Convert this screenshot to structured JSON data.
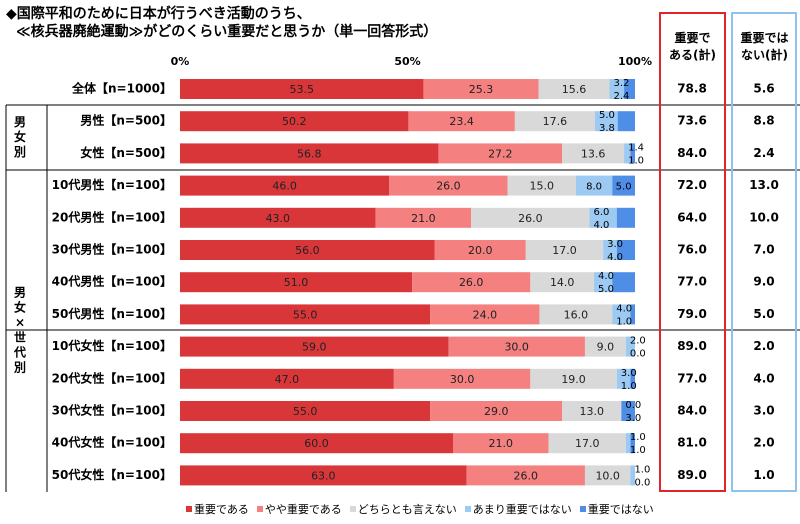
{
  "title": {
    "line1": "◆国際平和のために日本が行うべき活動のうち、",
    "line2": "≪核兵器廃絶運動≫がどのくらい重要だと思うか（単一回答形式）"
  },
  "summary_headers": {
    "important": "重要で\nある(計)",
    "not_important": "重要では\nない(計)"
  },
  "groups": [
    {
      "label": "男女別",
      "rows": [
        1,
        2
      ]
    },
    {
      "label": "男女×世代別",
      "rows": [
        3,
        12
      ]
    }
  ],
  "colors": {
    "重要である": "#d9363a",
    "やや重要である": "#f58080",
    "どちらとも言えない": "#d9d9d9",
    "あまり重要ではない": "#9ccaf2",
    "重要ではない": "#4f8ee6",
    "red_frame": "#e0242a",
    "blue_frame": "#8fc3ea"
  },
  "chart_data": {
    "type": "bar",
    "orientation": "horizontal-stacked-100",
    "x_ticks": [
      "0%",
      "50%",
      "100%"
    ],
    "xlim": [
      0,
      100
    ],
    "categories": [
      "全体【n=1000】",
      "男性【n=500】",
      "女性【n=500】",
      "10代男性【n=100】",
      "20代男性【n=100】",
      "30代男性【n=100】",
      "40代男性【n=100】",
      "50代男性【n=100】",
      "10代女性【n=100】",
      "20代女性【n=100】",
      "30代女性【n=100】",
      "40代女性【n=100】",
      "50代女性【n=100】"
    ],
    "series": [
      {
        "name": "重要である",
        "values": [
          53.5,
          50.2,
          56.8,
          46.0,
          43.0,
          56.0,
          51.0,
          55.0,
          59.0,
          47.0,
          55.0,
          60.0,
          63.0
        ],
        "labels": [
          "53.5",
          "50.2",
          "56.8",
          "46.0",
          "43.0",
          "56.0",
          "51.0",
          "55.0",
          "59.0",
          "47.0",
          "55.0",
          "60.0",
          "63.0"
        ]
      },
      {
        "name": "やや重要である",
        "values": [
          25.3,
          23.4,
          27.2,
          26.0,
          21.0,
          20.0,
          26.0,
          24.0,
          30.0,
          30.0,
          29.0,
          21.0,
          26.0
        ],
        "labels": [
          "25.3",
          "23.4",
          "27.2",
          "26.0",
          "21.0",
          "20.0",
          "26.0",
          "24.0",
          "30.0",
          "30.0",
          "29.0",
          "21.0",
          "26.0"
        ]
      },
      {
        "name": "どちらとも言えない",
        "values": [
          15.6,
          17.6,
          13.6,
          15.0,
          26.0,
          17.0,
          14.0,
          16.0,
          9.0,
          19.0,
          13.0,
          17.0,
          10.0
        ],
        "labels": [
          "15.6",
          "17.6",
          "13.6",
          "15.0",
          "26.0",
          "17.0",
          "14.0",
          "16.0",
          "9.0",
          "19.0",
          "13.0",
          "17.0",
          "10.0"
        ]
      },
      {
        "name": "あまり重要ではない",
        "values": [
          3.2,
          5.0,
          1.4,
          8.0,
          6.0,
          3.0,
          4.0,
          4.0,
          2.0,
          3.0,
          0.0,
          1.0,
          1.0
        ],
        "labels": [
          "3.2",
          "5.0",
          "1.4",
          "8.0",
          "6.0",
          "3.0",
          "4.0",
          "4.0",
          "2.0",
          "3.0",
          "0.0",
          "1.0",
          "1.0"
        ]
      },
      {
        "name": "重要ではない",
        "values": [
          2.4,
          3.8,
          1.0,
          5.0,
          4.0,
          4.0,
          5.0,
          1.0,
          0.0,
          1.0,
          3.0,
          1.0,
          0.0
        ],
        "labels": [
          "2.4",
          "3.8",
          "1.0",
          "5.0",
          "4.0",
          "4.0",
          "5.0",
          "1.0",
          "0.0",
          "1.0",
          "3.0",
          "1.0",
          "0.0"
        ]
      }
    ],
    "summary": {
      "important_total": [
        "78.8",
        "73.6",
        "84.0",
        "72.0",
        "64.0",
        "76.0",
        "77.0",
        "79.0",
        "89.0",
        "77.0",
        "84.0",
        "81.0",
        "89.0"
      ],
      "not_important_total": [
        "5.6",
        "8.8",
        "2.4",
        "13.0",
        "10.0",
        "7.0",
        "9.0",
        "5.0",
        "2.0",
        "4.0",
        "3.0",
        "2.0",
        "1.0"
      ]
    },
    "legend": [
      "重要である",
      "やや重要である",
      "どちらとも言えない",
      "あまり重要ではない",
      "重要ではない"
    ],
    "legend_position": "bottom"
  }
}
